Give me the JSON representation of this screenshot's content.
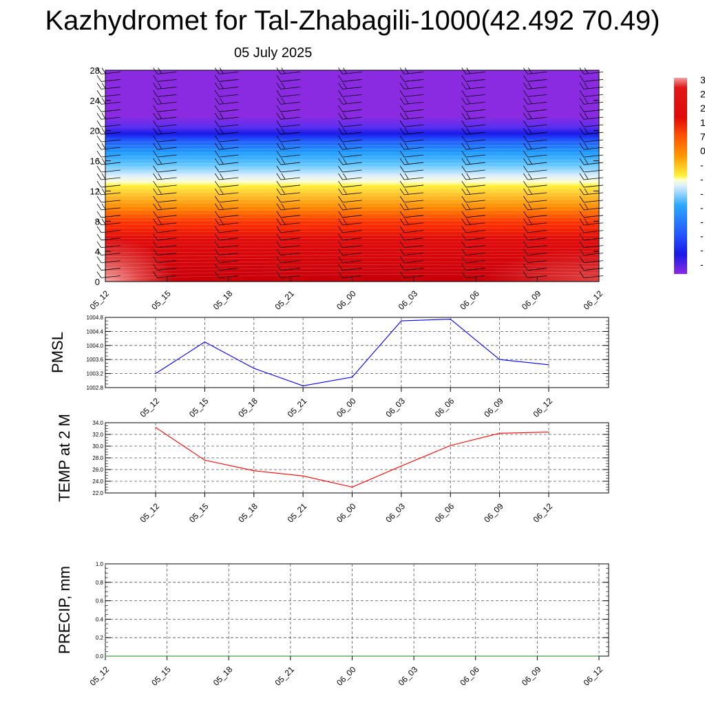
{
  "header": {
    "title": "Kazhydromet for Tal-Zhabagili-1000(42.492 70.49)",
    "subtitle": "05 July 2025"
  },
  "chart_data": [
    {
      "type": "heatmap",
      "title": "",
      "xlabel": "",
      "ylabel": "",
      "x_ticks": [
        "05_12",
        "05_15",
        "05_18",
        "05_21",
        "06_00",
        "06_03",
        "06_06",
        "06_09",
        "06_12"
      ],
      "y_ticks": [
        "0",
        "4",
        "8",
        "12",
        "16",
        "20",
        "24",
        "28"
      ],
      "ylim": [
        0,
        28
      ],
      "colorbar_labels": [
        "3",
        "2",
        "2",
        "1",
        "7",
        "0",
        "-",
        "-",
        "-",
        "-",
        "-",
        "-",
        "-",
        "-"
      ],
      "colors": {
        "purple": "#8a2be2",
        "blue": "#1a1aff",
        "cyan": "#29a9ff",
        "light": "#e8f6ff",
        "yellow": "#ffef3a",
        "orange": "#ff7f00",
        "red": "#e31a1c",
        "darkred": "#c8000a",
        "pink": "#f08080"
      },
      "overlay": "wind barbs"
    },
    {
      "type": "line",
      "ylabel": "PMSL",
      "x": [
        "05_12",
        "05_15",
        "05_18",
        "05_21",
        "06_00",
        "06_03",
        "06_06",
        "06_09",
        "06_12"
      ],
      "values": [
        1003.2,
        1004.1,
        1003.35,
        1002.85,
        1003.1,
        1004.7,
        1004.75,
        1003.6,
        1003.45
      ],
      "y_ticks": [
        "1002.8",
        "1003.2",
        "1003.6",
        "1004.0",
        "1004.4",
        "1004.8"
      ],
      "ylim": [
        1002.8,
        1004.8
      ],
      "line_color": "#0000ff",
      "grid": true
    },
    {
      "type": "line",
      "ylabel": "TEMP at 2 M",
      "x": [
        "05_12",
        "05_15",
        "05_18",
        "05_21",
        "06_00",
        "06_03",
        "06_06",
        "06_09",
        "06_12"
      ],
      "values": [
        33.2,
        27.6,
        25.8,
        24.9,
        23.0,
        26.6,
        30.1,
        32.2,
        32.4
      ],
      "y_ticks": [
        "22.0",
        "24.0",
        "26.0",
        "28.0",
        "30.0",
        "32.0",
        "34.0"
      ],
      "ylim": [
        22,
        34
      ],
      "line_color": "#ff0000",
      "grid": true
    },
    {
      "type": "line",
      "ylabel": "PRECIP, mm",
      "x": [
        "05_12",
        "05_15",
        "05_18",
        "05_21",
        "06_00",
        "06_03",
        "06_06",
        "06_09",
        "06_12"
      ],
      "values": [
        0,
        0,
        0,
        0,
        0,
        0,
        0,
        0,
        0
      ],
      "y_ticks": [
        "0.0",
        "0.2",
        "0.4",
        "0.6",
        "0.8",
        "1.0"
      ],
      "ylim": [
        0,
        1
      ],
      "line_color": "#1a7f1a",
      "grid": true
    }
  ]
}
